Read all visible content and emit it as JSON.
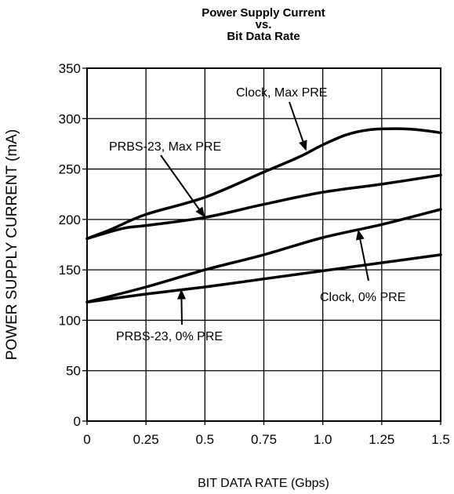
{
  "chart_data": {
    "type": "line",
    "title_lines": [
      "Power Supply Current",
      "vs.",
      "Bit Data Rate"
    ],
    "xlabel": "BIT DATA RATE (Gbps)",
    "ylabel": "POWER SUPPLY CURRENT (mA)",
    "xlim": [
      0,
      1.5
    ],
    "ylim": [
      0,
      350
    ],
    "x_ticks": [
      "0",
      "0.25",
      "0.5",
      "0.75",
      "1.0",
      "1.25",
      "1.5"
    ],
    "y_ticks": [
      "0",
      "50",
      "100",
      "150",
      "200",
      "250",
      "300",
      "350"
    ],
    "grid": true,
    "line_color": "#000000",
    "series": [
      {
        "name": "Clock, Max PRE",
        "x": [
          0,
          0.1,
          0.25,
          0.5,
          0.75,
          0.9,
          1.0,
          1.1,
          1.2,
          1.3,
          1.4,
          1.5
        ],
        "y": [
          181,
          190,
          205,
          222,
          247,
          262,
          274,
          284,
          289,
          290,
          289,
          286
        ]
      },
      {
        "name": "PRBS-23, Max PRE",
        "x": [
          0,
          0.15,
          0.25,
          0.5,
          0.75,
          1.0,
          1.25,
          1.5
        ],
        "y": [
          181,
          191,
          194,
          202,
          215,
          227,
          235,
          244
        ]
      },
      {
        "name": "Clock, 0% PRE",
        "x": [
          0,
          0.25,
          0.5,
          0.75,
          1.0,
          1.25,
          1.5
        ],
        "y": [
          118,
          133,
          150,
          165,
          182,
          195,
          210
        ]
      },
      {
        "name": "PRBS-23, 0% PRE",
        "x": [
          0,
          0.25,
          0.5,
          0.75,
          1.0,
          1.25,
          1.5
        ],
        "y": [
          118,
          126,
          133,
          141,
          149,
          157,
          165
        ]
      }
    ],
    "annotations": [
      {
        "text": "Clock, Max PRE",
        "series": 0,
        "point_x": 0.93,
        "point_y": 268
      },
      {
        "text": "PRBS-23, Max PRE",
        "series": 1,
        "point_x": 0.5,
        "point_y": 202
      },
      {
        "text": "Clock, 0% PRE",
        "series": 2,
        "point_x": 1.15,
        "point_y": 190
      },
      {
        "text": "PRBS-23, 0% PRE",
        "series": 3,
        "point_x": 0.4,
        "point_y": 131
      }
    ]
  }
}
